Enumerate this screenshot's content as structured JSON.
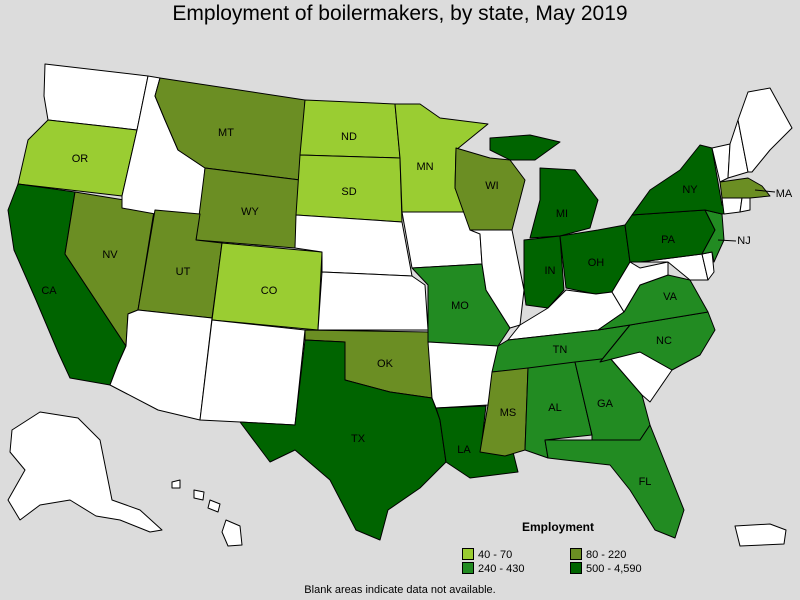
{
  "title": "Employment of boilermakers, by state, May 2019",
  "colors": {
    "no_data": "#ffffff",
    "c1": "#9acd32",
    "c2": "#6b8e23",
    "c3": "#228b22",
    "c4": "#006400"
  },
  "legend": {
    "title": "Employment",
    "items": [
      {
        "label": "40 - 70",
        "class": "c1"
      },
      {
        "label": "80 - 220",
        "class": "c2"
      },
      {
        "label": "240 - 430",
        "class": "c3"
      },
      {
        "label": "500 - 4,590",
        "class": "c4"
      }
    ]
  },
  "footnote": "Blank areas indicate data not available.",
  "states": [
    {
      "abbr": "OR",
      "class": "c1"
    },
    {
      "abbr": "ND",
      "class": "c1"
    },
    {
      "abbr": "SD",
      "class": "c1"
    },
    {
      "abbr": "MN",
      "class": "c1"
    },
    {
      "abbr": "CO",
      "class": "c1"
    },
    {
      "abbr": "MT",
      "class": "c2"
    },
    {
      "abbr": "WY",
      "class": "c2"
    },
    {
      "abbr": "NV",
      "class": "c2"
    },
    {
      "abbr": "UT",
      "class": "c2"
    },
    {
      "abbr": "WI",
      "class": "c2"
    },
    {
      "abbr": "OK",
      "class": "c2"
    },
    {
      "abbr": "MS",
      "class": "c2"
    },
    {
      "abbr": "MA",
      "class": "c2"
    },
    {
      "abbr": "MO",
      "class": "c3"
    },
    {
      "abbr": "TN",
      "class": "c3"
    },
    {
      "abbr": "AL",
      "class": "c3"
    },
    {
      "abbr": "GA",
      "class": "c3"
    },
    {
      "abbr": "FL",
      "class": "c3"
    },
    {
      "abbr": "NC",
      "class": "c3"
    },
    {
      "abbr": "VA",
      "class": "c3"
    },
    {
      "abbr": "NJ",
      "class": "c3"
    },
    {
      "abbr": "CA",
      "class": "c4"
    },
    {
      "abbr": "TX",
      "class": "c4"
    },
    {
      "abbr": "LA",
      "class": "c4"
    },
    {
      "abbr": "MI",
      "class": "c4"
    },
    {
      "abbr": "IN",
      "class": "c4"
    },
    {
      "abbr": "OH",
      "class": "c4"
    },
    {
      "abbr": "PA",
      "class": "c4"
    },
    {
      "abbr": "NY",
      "class": "c4"
    }
  ]
}
